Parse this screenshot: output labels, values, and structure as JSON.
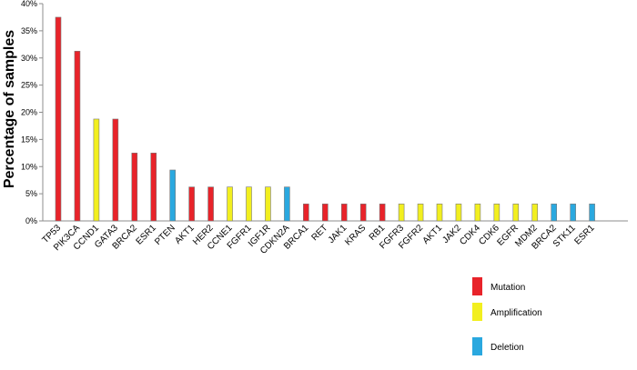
{
  "chart_data": {
    "type": "bar",
    "ylabel": "Percentage of samples",
    "ylim": [
      0,
      40
    ],
    "yticks": [
      "0%",
      "5%",
      "10%",
      "15%",
      "20%",
      "25%",
      "30%",
      "35%",
      "40%"
    ],
    "grid": false,
    "legend_position": "bottom-right",
    "legend": [
      {
        "label": "Mutation",
        "color": "#e8232a"
      },
      {
        "label": "Amplification",
        "color": "#f2ef1f"
      },
      {
        "label": "Deletion",
        "color": "#2aa8df"
      }
    ],
    "categories": [
      "TP53",
      "PIK3CA",
      "CCND1",
      "GATA3",
      "BRCA2",
      "ESR1",
      "PTEN",
      "AKT1",
      "HER2",
      "CCNE1",
      "FGFR1",
      "IGF1R",
      "CDKN2A",
      "BRCA1",
      "RET",
      "JAK1",
      "KRAS",
      "RB1",
      "FGFR3",
      "FGFR2",
      "AKT1",
      "JAK2",
      "CDK4",
      "CDK6",
      "EGFR",
      "MDM2",
      "BRCA2",
      "STK11",
      "ESR1"
    ],
    "values": [
      37.5,
      31.25,
      18.75,
      18.75,
      12.5,
      12.5,
      9.375,
      6.25,
      6.25,
      6.25,
      6.25,
      6.25,
      6.25,
      3.125,
      3.125,
      3.125,
      3.125,
      3.125,
      3.125,
      3.125,
      3.125,
      3.125,
      3.125,
      3.125,
      3.125,
      3.125,
      3.125,
      3.125,
      3.125
    ],
    "types": [
      "Mutation",
      "Mutation",
      "Amplification",
      "Mutation",
      "Mutation",
      "Mutation",
      "Deletion",
      "Mutation",
      "Mutation",
      "Amplification",
      "Amplification",
      "Amplification",
      "Deletion",
      "Mutation",
      "Mutation",
      "Mutation",
      "Mutation",
      "Mutation",
      "Amplification",
      "Amplification",
      "Amplification",
      "Amplification",
      "Amplification",
      "Amplification",
      "Amplification",
      "Amplification",
      "Deletion",
      "Deletion",
      "Deletion"
    ]
  }
}
